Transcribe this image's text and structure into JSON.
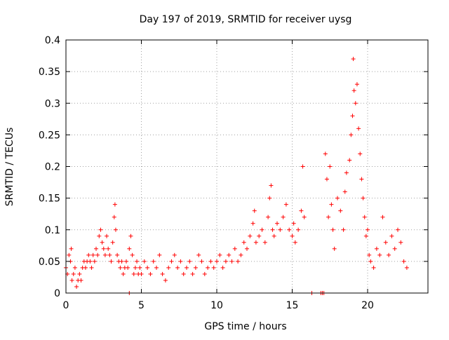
{
  "chart_data": {
    "type": "scatter",
    "title": "Day 197 of 2019, SRMTID for receiver uysg",
    "xlabel": "GPS time / hours",
    "ylabel": "SRMTID / TECUs",
    "xlim": [
      0,
      24
    ],
    "ylim": [
      0,
      0.4
    ],
    "xticks": [
      0,
      5,
      10,
      15,
      20
    ],
    "xtick_labels": [
      "0",
      "5",
      "10",
      "15",
      "20"
    ],
    "yticks": [
      0,
      0.05,
      0.1,
      0.15,
      0.2,
      0.25,
      0.3,
      0.35,
      0.4
    ],
    "ytick_labels": [
      "0",
      "0.05",
      "0.1",
      "0.15",
      "0.2",
      "0.25",
      "0.3",
      "0.35",
      "0.4"
    ],
    "grid": true,
    "marker": "+",
    "color": "#ff0000",
    "series": [
      {
        "name": "SRMTID",
        "points": [
          [
            0.0,
            0.04
          ],
          [
            0.1,
            0.03
          ],
          [
            0.2,
            0.06
          ],
          [
            0.3,
            0.05
          ],
          [
            0.35,
            0.07
          ],
          [
            0.4,
            0.02
          ],
          [
            0.5,
            0.03
          ],
          [
            0.6,
            0.04
          ],
          [
            0.7,
            0.01
          ],
          [
            0.8,
            0.02
          ],
          [
            0.9,
            0.03
          ],
          [
            1.0,
            0.02
          ],
          [
            1.1,
            0.04
          ],
          [
            1.2,
            0.05
          ],
          [
            1.3,
            0.04
          ],
          [
            1.4,
            0.05
          ],
          [
            1.5,
            0.06
          ],
          [
            1.6,
            0.05
          ],
          [
            1.7,
            0.04
          ],
          [
            1.8,
            0.06
          ],
          [
            1.9,
            0.05
          ],
          [
            2.0,
            0.07
          ],
          [
            2.1,
            0.06
          ],
          [
            2.2,
            0.09
          ],
          [
            2.3,
            0.1
          ],
          [
            2.4,
            0.08
          ],
          [
            2.5,
            0.07
          ],
          [
            2.6,
            0.06
          ],
          [
            2.7,
            0.09
          ],
          [
            2.8,
            0.07
          ],
          [
            2.9,
            0.06
          ],
          [
            3.0,
            0.05
          ],
          [
            3.1,
            0.08
          ],
          [
            3.2,
            0.12
          ],
          [
            3.25,
            0.14
          ],
          [
            3.3,
            0.1
          ],
          [
            3.4,
            0.06
          ],
          [
            3.5,
            0.05
          ],
          [
            3.6,
            0.04
          ],
          [
            3.7,
            0.05
          ],
          [
            3.8,
            0.03
          ],
          [
            3.9,
            0.04
          ],
          [
            4.0,
            0.05
          ],
          [
            4.1,
            0.04
          ],
          [
            4.2,
            0.07
          ],
          [
            4.3,
            0.09
          ],
          [
            4.4,
            0.06
          ],
          [
            4.5,
            0.03
          ],
          [
            4.6,
            0.04
          ],
          [
            4.7,
            0.05
          ],
          [
            4.8,
            0.03
          ],
          [
            4.9,
            0.04
          ],
          [
            5.0,
            0.03
          ],
          [
            5.2,
            0.05
          ],
          [
            5.4,
            0.04
          ],
          [
            5.6,
            0.03
          ],
          [
            5.8,
            0.05
          ],
          [
            6.0,
            0.04
          ],
          [
            6.2,
            0.06
          ],
          [
            6.4,
            0.03
          ],
          [
            6.6,
            0.02
          ],
          [
            6.8,
            0.04
          ],
          [
            7.0,
            0.05
          ],
          [
            7.2,
            0.06
          ],
          [
            7.4,
            0.04
          ],
          [
            7.6,
            0.05
          ],
          [
            7.8,
            0.03
          ],
          [
            8.0,
            0.04
          ],
          [
            8.2,
            0.05
          ],
          [
            8.4,
            0.03
          ],
          [
            8.6,
            0.04
          ],
          [
            8.8,
            0.06
          ],
          [
            9.0,
            0.05
          ],
          [
            9.2,
            0.03
          ],
          [
            9.4,
            0.04
          ],
          [
            9.6,
            0.05
          ],
          [
            9.8,
            0.04
          ],
          [
            10.0,
            0.05
          ],
          [
            10.2,
            0.06
          ],
          [
            10.4,
            0.04
          ],
          [
            10.6,
            0.05
          ],
          [
            10.8,
            0.06
          ],
          [
            11.0,
            0.05
          ],
          [
            11.2,
            0.07
          ],
          [
            11.4,
            0.05
          ],
          [
            11.6,
            0.06
          ],
          [
            11.8,
            0.08
          ],
          [
            12.0,
            0.07
          ],
          [
            12.2,
            0.09
          ],
          [
            12.4,
            0.11
          ],
          [
            12.5,
            0.13
          ],
          [
            12.6,
            0.08
          ],
          [
            12.8,
            0.09
          ],
          [
            13.0,
            0.1
          ],
          [
            13.2,
            0.08
          ],
          [
            13.4,
            0.12
          ],
          [
            13.5,
            0.15
          ],
          [
            13.6,
            0.17
          ],
          [
            13.7,
            0.1
          ],
          [
            13.8,
            0.09
          ],
          [
            14.0,
            0.11
          ],
          [
            14.2,
            0.1
          ],
          [
            14.4,
            0.12
          ],
          [
            14.6,
            0.14
          ],
          [
            14.8,
            0.1
          ],
          [
            15.0,
            0.09
          ],
          [
            15.1,
            0.11
          ],
          [
            15.2,
            0.08
          ],
          [
            15.4,
            0.1
          ],
          [
            15.6,
            0.13
          ],
          [
            15.7,
            0.2
          ],
          [
            15.8,
            0.12
          ],
          [
            17.2,
            0.22
          ],
          [
            17.3,
            0.18
          ],
          [
            17.4,
            0.12
          ],
          [
            17.5,
            0.2
          ],
          [
            17.6,
            0.14
          ],
          [
            17.7,
            0.1
          ],
          [
            17.8,
            0.07
          ],
          [
            18.0,
            0.15
          ],
          [
            18.2,
            0.13
          ],
          [
            18.4,
            0.1
          ],
          [
            18.5,
            0.16
          ],
          [
            18.6,
            0.19
          ],
          [
            18.8,
            0.21
          ],
          [
            18.9,
            0.25
          ],
          [
            19.0,
            0.28
          ],
          [
            19.05,
            0.37
          ],
          [
            19.1,
            0.32
          ],
          [
            19.2,
            0.3
          ],
          [
            19.3,
            0.33
          ],
          [
            19.4,
            0.26
          ],
          [
            19.5,
            0.22
          ],
          [
            19.6,
            0.18
          ],
          [
            19.7,
            0.15
          ],
          [
            19.8,
            0.12
          ],
          [
            19.9,
            0.09
          ],
          [
            20.0,
            0.1
          ],
          [
            20.1,
            0.06
          ],
          [
            20.2,
            0.05
          ],
          [
            20.4,
            0.04
          ],
          [
            20.6,
            0.07
          ],
          [
            20.8,
            0.06
          ],
          [
            21.0,
            0.12
          ],
          [
            21.2,
            0.08
          ],
          [
            21.4,
            0.06
          ],
          [
            21.6,
            0.09
          ],
          [
            21.8,
            0.07
          ],
          [
            22.0,
            0.1
          ],
          [
            22.2,
            0.08
          ],
          [
            22.4,
            0.05
          ],
          [
            22.6,
            0.04
          ],
          [
            4.2,
            0.0
          ],
          [
            16.3,
            0.0
          ],
          [
            16.9,
            0.0
          ],
          [
            17.0,
            0.0
          ],
          [
            17.1,
            0.0
          ]
        ]
      }
    ]
  }
}
